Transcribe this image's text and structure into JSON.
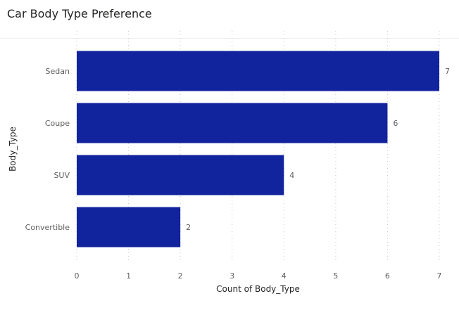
{
  "chart_data": {
    "type": "bar",
    "orientation": "horizontal",
    "title": "Car Body Type Preference",
    "xlabel": "Count of Body_Type",
    "ylabel": "Body_Type",
    "categories": [
      "Sedan",
      "Coupe",
      "SUV",
      "Convertible"
    ],
    "values": [
      7,
      6,
      4,
      2
    ],
    "xlim": [
      0,
      7
    ],
    "xticks": [
      0,
      1,
      2,
      3,
      4,
      5,
      6,
      7
    ],
    "grid": true,
    "legend": "none",
    "bar_color": "#12239e",
    "inside_label_color": "#ffffff",
    "outside_label_color": "#605e5c",
    "grid_color": "#c8c6c4"
  }
}
